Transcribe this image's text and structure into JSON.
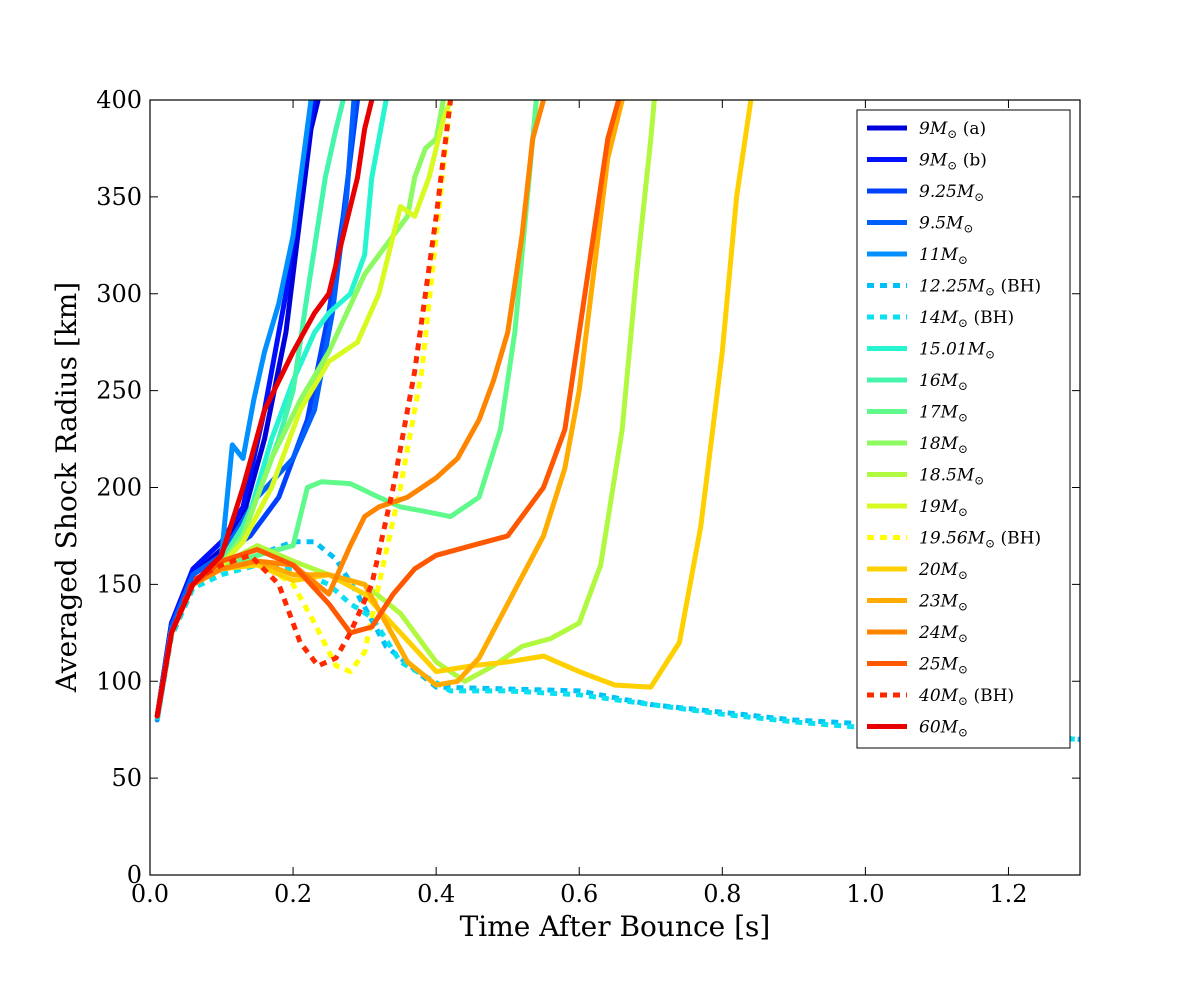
{
  "chart_data": {
    "type": "line",
    "title": "",
    "xlabel": "Time After Bounce [s]",
    "ylabel": "Averaged Shock Radius [km]",
    "xlim": [
      0.0,
      1.3
    ],
    "ylim": [
      0,
      400
    ],
    "x_ticks": [
      0.0,
      0.2,
      0.4,
      0.6,
      0.8,
      1.0,
      1.2
    ],
    "x_tick_labels": [
      "0.0",
      "0.2",
      "0.4",
      "0.6",
      "0.8",
      "1.0",
      "1.2"
    ],
    "y_ticks": [
      0,
      50,
      100,
      150,
      200,
      250,
      300,
      350,
      400
    ],
    "y_tick_labels": [
      "0",
      "50",
      "100",
      "150",
      "200",
      "250",
      "300",
      "350",
      "400"
    ],
    "legend_position": "top-right",
    "series": [
      {
        "name": "9M☉ (a)",
        "label_main": "9M",
        "label_suffix": "(a)",
        "color": "#0000d8",
        "dashed": false,
        "x": [
          0.01,
          0.03,
          0.06,
          0.1,
          0.13,
          0.16,
          0.19,
          0.21,
          0.225,
          0.235
        ],
        "y": [
          82,
          130,
          155,
          168,
          185,
          225,
          280,
          340,
          385,
          400
        ]
      },
      {
        "name": "9M☉ (b)",
        "label_main": "9M",
        "label_suffix": "(b)",
        "color": "#0010ff",
        "dashed": false,
        "x": [
          0.01,
          0.03,
          0.06,
          0.1,
          0.13,
          0.16,
          0.19,
          0.215,
          0.23
        ],
        "y": [
          82,
          130,
          158,
          172,
          190,
          240,
          300,
          370,
          400
        ]
      },
      {
        "name": "9.25M☉",
        "label_main": "9.25M",
        "label_suffix": "",
        "color": "#0040ff",
        "dashed": false,
        "x": [
          0.01,
          0.03,
          0.06,
          0.1,
          0.14,
          0.18,
          0.22,
          0.25,
          0.27,
          0.29
        ],
        "y": [
          82,
          128,
          155,
          165,
          175,
          195,
          235,
          290,
          340,
          400
        ]
      },
      {
        "name": "9.5M☉",
        "label_main": "9.5M",
        "label_suffix": "",
        "color": "#0060ff",
        "dashed": false,
        "x": [
          0.01,
          0.03,
          0.06,
          0.1,
          0.15,
          0.2,
          0.23,
          0.255,
          0.275,
          0.285
        ],
        "y": [
          82,
          128,
          155,
          165,
          195,
          215,
          240,
          290,
          350,
          400
        ]
      },
      {
        "name": "11M☉",
        "label_main": "11M",
        "label_suffix": "",
        "color": "#0090ff",
        "dashed": false,
        "x": [
          0.01,
          0.03,
          0.06,
          0.1,
          0.115,
          0.13,
          0.145,
          0.16,
          0.18,
          0.2,
          0.225
        ],
        "y": [
          80,
          125,
          150,
          165,
          222,
          215,
          245,
          270,
          295,
          330,
          400
        ]
      },
      {
        "name": "12.25M☉ (BH)",
        "label_main": "12.25M",
        "label_suffix": "(BH)",
        "color": "#00c0f8",
        "dashed": true,
        "x": [
          0.01,
          0.03,
          0.06,
          0.1,
          0.15,
          0.2,
          0.23,
          0.26,
          0.29,
          0.33,
          0.4,
          0.5,
          0.6,
          0.7,
          0.8,
          0.9,
          1.0,
          1.1,
          1.2,
          1.3
        ],
        "y": [
          82,
          125,
          150,
          158,
          165,
          172,
          172,
          163,
          145,
          118,
          97,
          96,
          95,
          88,
          84,
          80,
          78,
          75,
          73,
          70
        ]
      },
      {
        "name": "14M☉ (BH)",
        "label_main": "14M",
        "label_suffix": "(BH)",
        "color": "#0ae0f0",
        "dashed": true,
        "x": [
          0.01,
          0.03,
          0.06,
          0.1,
          0.15,
          0.2,
          0.25,
          0.28,
          0.31,
          0.35,
          0.42,
          0.5,
          0.6,
          0.7,
          0.8,
          0.9,
          1.0,
          1.1,
          1.2,
          1.3
        ],
        "y": [
          80,
          123,
          148,
          155,
          160,
          158,
          150,
          140,
          133,
          110,
          95,
          95,
          93,
          88,
          83,
          79,
          76,
          74,
          72,
          70
        ]
      },
      {
        "name": "15.01M☉",
        "label_main": "15.01M",
        "label_suffix": "",
        "color": "#27f5d0",
        "dashed": false,
        "x": [
          0.01,
          0.03,
          0.06,
          0.1,
          0.13,
          0.17,
          0.2,
          0.23,
          0.25,
          0.28,
          0.3,
          0.31,
          0.33
        ],
        "y": [
          82,
          125,
          150,
          160,
          175,
          225,
          255,
          280,
          290,
          300,
          320,
          360,
          400
        ]
      },
      {
        "name": "16M☉",
        "label_main": "16M",
        "label_suffix": "",
        "color": "#45f5ac",
        "dashed": false,
        "x": [
          0.01,
          0.03,
          0.06,
          0.1,
          0.13,
          0.16,
          0.18,
          0.2,
          0.22,
          0.245,
          0.26,
          0.27
        ],
        "y": [
          82,
          125,
          150,
          162,
          180,
          205,
          225,
          250,
          300,
          360,
          385,
          400
        ]
      },
      {
        "name": "17M☉",
        "label_main": "17M",
        "label_suffix": "",
        "color": "#60fa8c",
        "dashed": false,
        "x": [
          0.01,
          0.03,
          0.06,
          0.1,
          0.15,
          0.2,
          0.22,
          0.24,
          0.28,
          0.32,
          0.35,
          0.38,
          0.42,
          0.46,
          0.49,
          0.51,
          0.53,
          0.54
        ],
        "y": [
          82,
          125,
          150,
          160,
          165,
          170,
          200,
          203,
          202,
          195,
          190,
          188,
          185,
          195,
          230,
          280,
          360,
          400
        ]
      },
      {
        "name": "18M☉",
        "label_main": "18M",
        "label_suffix": "",
        "color": "#8cfa60",
        "dashed": false,
        "x": [
          0.01,
          0.03,
          0.06,
          0.1,
          0.13,
          0.17,
          0.21,
          0.25,
          0.3,
          0.34,
          0.36,
          0.37,
          0.385,
          0.4,
          0.41
        ],
        "y": [
          82,
          125,
          150,
          160,
          175,
          215,
          245,
          270,
          310,
          330,
          340,
          360,
          375,
          380,
          400
        ]
      },
      {
        "name": "18.5M☉",
        "label_main": "18.5M",
        "label_suffix": "",
        "color": "#b0f940",
        "dashed": false,
        "x": [
          0.01,
          0.03,
          0.06,
          0.1,
          0.15,
          0.2,
          0.25,
          0.3,
          0.35,
          0.4,
          0.44,
          0.48,
          0.52,
          0.56,
          0.6,
          0.63,
          0.66,
          0.68,
          0.7,
          0.705
        ],
        "y": [
          82,
          125,
          150,
          160,
          170,
          162,
          155,
          150,
          135,
          110,
          100,
          108,
          118,
          122,
          130,
          160,
          230,
          310,
          380,
          400
        ]
      },
      {
        "name": "19M☉",
        "label_main": "19M",
        "label_suffix": "",
        "color": "#d8fa20",
        "dashed": false,
        "x": [
          0.01,
          0.03,
          0.06,
          0.1,
          0.13,
          0.17,
          0.21,
          0.25,
          0.29,
          0.32,
          0.34,
          0.35,
          0.37,
          0.39,
          0.41,
          0.42
        ],
        "y": [
          82,
          125,
          150,
          160,
          172,
          200,
          240,
          265,
          275,
          300,
          330,
          345,
          340,
          360,
          390,
          400
        ]
      },
      {
        "name": "19.56M☉ (BH)",
        "label_main": "19.56M",
        "label_suffix": "(BH)",
        "color": "#ffff00",
        "dashed": true,
        "x": [
          0.01,
          0.03,
          0.06,
          0.1,
          0.15,
          0.2,
          0.23,
          0.26,
          0.28,
          0.3,
          0.32,
          0.35,
          0.38,
          0.4,
          0.42
        ],
        "y": [
          82,
          125,
          150,
          158,
          162,
          150,
          130,
          108,
          105,
          115,
          150,
          200,
          260,
          330,
          400
        ]
      },
      {
        "name": "20M☉",
        "label_main": "20M",
        "label_suffix": "",
        "color": "#ffd000",
        "dashed": false,
        "x": [
          0.01,
          0.03,
          0.06,
          0.1,
          0.15,
          0.2,
          0.25,
          0.3,
          0.35,
          0.4,
          0.45,
          0.5,
          0.55,
          0.6,
          0.65,
          0.7,
          0.74,
          0.77,
          0.8,
          0.82,
          0.84
        ],
        "y": [
          82,
          125,
          150,
          158,
          160,
          152,
          155,
          145,
          125,
          105,
          108,
          110,
          113,
          105,
          98,
          97,
          120,
          180,
          270,
          350,
          400
        ]
      },
      {
        "name": "23M☉",
        "label_main": "23M",
        "label_suffix": "",
        "color": "#ffab00",
        "dashed": false,
        "x": [
          0.01,
          0.03,
          0.06,
          0.1,
          0.15,
          0.2,
          0.25,
          0.3,
          0.33,
          0.36,
          0.4,
          0.43,
          0.46,
          0.5,
          0.55,
          0.58,
          0.6,
          0.62,
          0.64,
          0.66
        ],
        "y": [
          82,
          125,
          150,
          158,
          162,
          155,
          155,
          150,
          130,
          110,
          98,
          100,
          112,
          140,
          175,
          210,
          250,
          310,
          370,
          400
        ]
      },
      {
        "name": "24M☉",
        "label_main": "24M",
        "label_suffix": "",
        "color": "#ff8400",
        "dashed": false,
        "x": [
          0.01,
          0.03,
          0.06,
          0.1,
          0.15,
          0.2,
          0.25,
          0.28,
          0.3,
          0.32,
          0.36,
          0.4,
          0.43,
          0.46,
          0.48,
          0.5,
          0.52,
          0.535,
          0.55
        ],
        "y": [
          82,
          125,
          150,
          158,
          162,
          160,
          145,
          170,
          185,
          190,
          195,
          205,
          215,
          235,
          255,
          280,
          330,
          380,
          400
        ]
      },
      {
        "name": "25M☉",
        "label_main": "25M",
        "label_suffix": "",
        "color": "#ff5800",
        "dashed": false,
        "x": [
          0.01,
          0.03,
          0.06,
          0.1,
          0.15,
          0.2,
          0.25,
          0.28,
          0.31,
          0.34,
          0.37,
          0.4,
          0.45,
          0.5,
          0.55,
          0.58,
          0.6,
          0.62,
          0.64,
          0.655
        ],
        "y": [
          82,
          125,
          150,
          162,
          168,
          160,
          140,
          125,
          128,
          145,
          158,
          165,
          170,
          175,
          200,
          230,
          280,
          330,
          380,
          400
        ]
      },
      {
        "name": "40M☉ (BH)",
        "label_main": "40M",
        "label_suffix": "(BH)",
        "color": "#ff2800",
        "dashed": true,
        "x": [
          0.01,
          0.03,
          0.06,
          0.1,
          0.14,
          0.18,
          0.21,
          0.235,
          0.26,
          0.28,
          0.31,
          0.34,
          0.37,
          0.4,
          0.42
        ],
        "y": [
          82,
          125,
          152,
          160,
          165,
          150,
          120,
          108,
          112,
          125,
          150,
          200,
          260,
          340,
          400
        ]
      },
      {
        "name": "60M☉",
        "label_main": "60M",
        "label_suffix": "",
        "color": "#e80000",
        "dashed": false,
        "x": [
          0.01,
          0.03,
          0.06,
          0.1,
          0.13,
          0.16,
          0.2,
          0.23,
          0.25,
          0.27,
          0.29,
          0.3,
          0.31
        ],
        "y": [
          82,
          125,
          150,
          165,
          200,
          240,
          270,
          290,
          300,
          330,
          360,
          385,
          400
        ]
      }
    ]
  }
}
